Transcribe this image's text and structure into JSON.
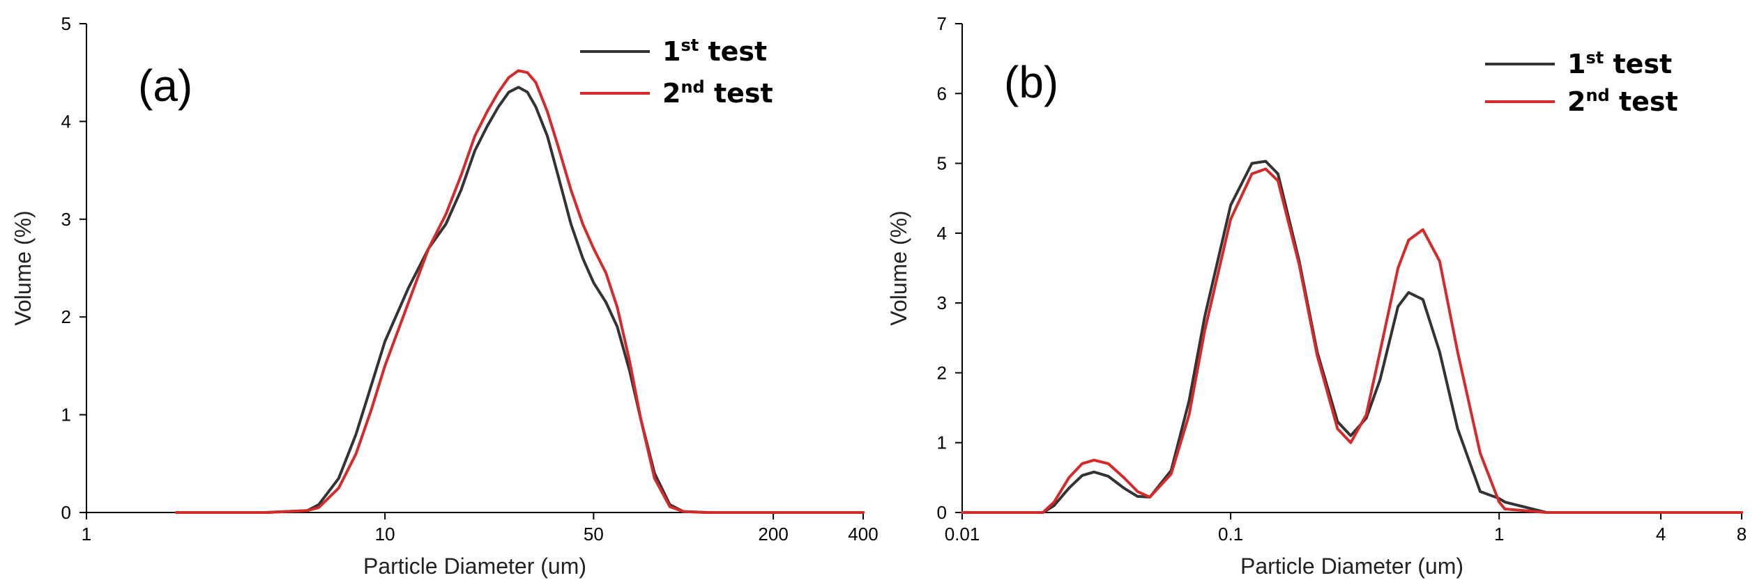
{
  "chart_data": [
    {
      "type": "line",
      "panel_label": "(a)",
      "xlabel": "Particle Diameter (um)",
      "ylabel": "Volume (%)",
      "xscale": "log",
      "xlim": [
        1,
        400
      ],
      "ylim": [
        0,
        5
      ],
      "xticks": [
        1,
        10,
        50,
        200,
        400
      ],
      "xtick_labels": [
        "1",
        "10",
        "50",
        "200",
        "400"
      ],
      "yticks": [
        0,
        1,
        2,
        3,
        4,
        5
      ],
      "ytick_labels": [
        "0",
        "1",
        "2",
        "3",
        "4",
        "5"
      ],
      "legend_position": "top-right",
      "series": [
        {
          "name": "1st test",
          "name_base": "1",
          "name_sup": "st",
          "name_rest": " test",
          "color": "#333333",
          "x": [
            2,
            4,
            5.5,
            6,
            7,
            8,
            9,
            10,
            12,
            14,
            16,
            18,
            20,
            22,
            24,
            26,
            28,
            30,
            32,
            35,
            38,
            42,
            46,
            50,
            55,
            60,
            66,
            72,
            80,
            90,
            100,
            120,
            150,
            200,
            300,
            400
          ],
          "y": [
            0,
            0,
            0.02,
            0.08,
            0.35,
            0.8,
            1.3,
            1.75,
            2.3,
            2.7,
            2.95,
            3.3,
            3.7,
            3.95,
            4.15,
            4.3,
            4.35,
            4.3,
            4.15,
            3.85,
            3.45,
            2.95,
            2.6,
            2.35,
            2.15,
            1.9,
            1.45,
            0.95,
            0.4,
            0.08,
            0.01,
            0,
            0,
            0,
            0,
            0
          ]
        },
        {
          "name": "2nd test",
          "name_base": "2",
          "name_sup": "nd",
          "name_rest": " test",
          "color": "#d42a2a",
          "x": [
            2,
            4,
            5.5,
            6,
            7,
            8,
            9,
            10,
            12,
            14,
            16,
            18,
            20,
            22,
            24,
            26,
            28,
            30,
            32,
            35,
            38,
            42,
            46,
            50,
            55,
            60,
            66,
            72,
            80,
            90,
            100,
            120,
            150,
            200,
            300,
            400
          ],
          "y": [
            0,
            0,
            0.02,
            0.05,
            0.25,
            0.6,
            1.05,
            1.5,
            2.15,
            2.7,
            3.05,
            3.45,
            3.85,
            4.1,
            4.3,
            4.45,
            4.52,
            4.5,
            4.4,
            4.1,
            3.75,
            3.3,
            2.95,
            2.7,
            2.45,
            2.1,
            1.55,
            0.95,
            0.35,
            0.06,
            0.01,
            0,
            0,
            0,
            0,
            0
          ]
        }
      ]
    },
    {
      "type": "line",
      "panel_label": "(b)",
      "xlabel": "Particle Diameter (um)",
      "ylabel": "Volume (%)",
      "xscale": "log",
      "xlim": [
        0.01,
        8
      ],
      "ylim": [
        0,
        7
      ],
      "xticks": [
        0.01,
        0.1,
        1,
        4,
        8
      ],
      "xtick_labels": [
        "0.01",
        "0.1",
        "1",
        "4",
        "8"
      ],
      "yticks": [
        0,
        1,
        2,
        3,
        4,
        5,
        6,
        7
      ],
      "ytick_labels": [
        "0",
        "1",
        "2",
        "3",
        "4",
        "5",
        "6",
        "7"
      ],
      "legend_position": "top-right",
      "series": [
        {
          "name": "1st test",
          "name_base": "1",
          "name_sup": "st",
          "name_rest": " test",
          "color": "#333333",
          "x": [
            0.01,
            0.02,
            0.022,
            0.025,
            0.028,
            0.031,
            0.035,
            0.04,
            0.045,
            0.05,
            0.06,
            0.07,
            0.08,
            0.1,
            0.12,
            0.135,
            0.15,
            0.18,
            0.21,
            0.25,
            0.28,
            0.32,
            0.36,
            0.42,
            0.46,
            0.52,
            0.6,
            0.7,
            0.85,
            1,
            1.05,
            1.5,
            4,
            8
          ],
          "y": [
            0,
            0,
            0.1,
            0.35,
            0.53,
            0.58,
            0.52,
            0.35,
            0.23,
            0.22,
            0.6,
            1.6,
            2.8,
            4.4,
            5.0,
            5.03,
            4.85,
            3.6,
            2.3,
            1.3,
            1.1,
            1.35,
            1.9,
            2.95,
            3.15,
            3.05,
            2.3,
            1.2,
            0.3,
            0.2,
            0.15,
            0,
            0,
            0
          ]
        },
        {
          "name": "2nd test",
          "name_base": "2",
          "name_sup": "nd",
          "name_rest": " test",
          "color": "#d42a2a",
          "x": [
            0.01,
            0.02,
            0.022,
            0.025,
            0.028,
            0.031,
            0.035,
            0.04,
            0.045,
            0.05,
            0.06,
            0.07,
            0.08,
            0.1,
            0.12,
            0.135,
            0.15,
            0.18,
            0.21,
            0.25,
            0.28,
            0.32,
            0.36,
            0.42,
            0.46,
            0.52,
            0.6,
            0.7,
            0.85,
            1,
            1.05,
            1.5,
            4,
            8
          ],
          "y": [
            0,
            0,
            0.15,
            0.5,
            0.7,
            0.75,
            0.7,
            0.5,
            0.3,
            0.22,
            0.55,
            1.4,
            2.6,
            4.2,
            4.85,
            4.92,
            4.75,
            3.55,
            2.25,
            1.2,
            1.0,
            1.4,
            2.3,
            3.5,
            3.9,
            4.05,
            3.6,
            2.3,
            0.85,
            0.15,
            0.05,
            0,
            0,
            0
          ]
        }
      ]
    }
  ]
}
